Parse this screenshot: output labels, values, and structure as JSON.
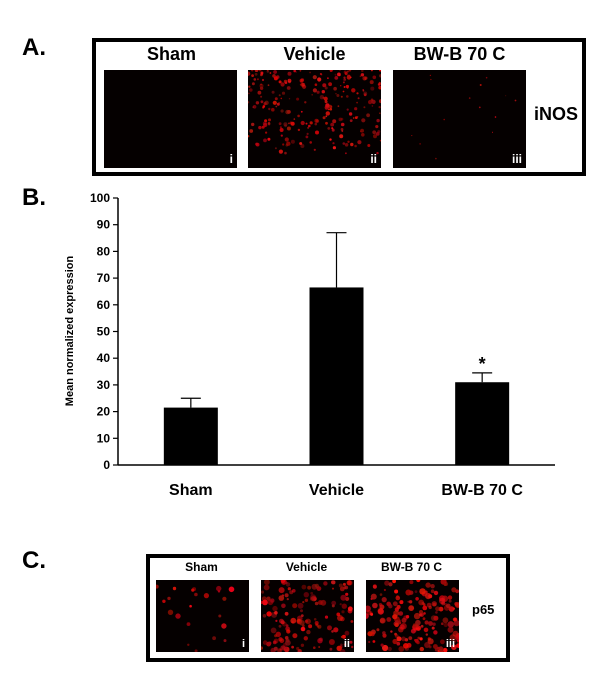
{
  "panelA": {
    "letter": "A.",
    "columns": [
      "Sham",
      "Vehicle",
      "BW-B 70 C"
    ],
    "numerals": [
      "i",
      "ii",
      "iii"
    ],
    "marker": "iNOS"
  },
  "panelB": {
    "letter": "B."
  },
  "panelC": {
    "letter": "C.",
    "columns": [
      "Sham",
      "Vehicle",
      "BW-B 70 C"
    ],
    "numerals": [
      "i",
      "ii",
      "iii"
    ],
    "marker": "p65"
  },
  "chart_data": {
    "type": "bar",
    "categories": [
      "Sham",
      "Vehicle",
      "BW-B 70 C"
    ],
    "values": [
      21.5,
      66.5,
      31
    ],
    "errors": [
      3.5,
      20.5,
      3.5
    ],
    "annotations": [
      "",
      "",
      "*"
    ],
    "ylabel": "Mean normalized expression",
    "ylim": [
      0,
      100
    ],
    "yticks": [
      0,
      10,
      20,
      30,
      40,
      50,
      60,
      70,
      80,
      90,
      100
    ],
    "bar_color": "#000000",
    "grid": false
  }
}
